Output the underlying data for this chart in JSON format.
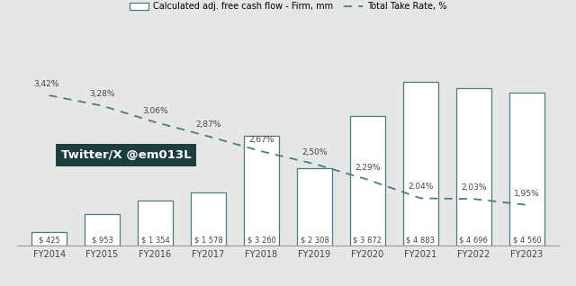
{
  "categories": [
    "FY2014",
    "FY2015",
    "FY2016",
    "FY2017",
    "FY2018",
    "FY2019",
    "FY2020",
    "FY2021",
    "FY2022",
    "FY2023"
  ],
  "bar_values": [
    425,
    953,
    1354,
    1578,
    3260,
    2308,
    3872,
    4883,
    4696,
    4560
  ],
  "bar_labels": [
    "$ 425",
    "$ 953",
    "$ 1 354",
    "$ 1 578",
    "$ 3 260",
    "$ 2 308",
    "$ 3 872",
    "$ 4 883",
    "$ 4 696",
    "$ 4 560"
  ],
  "take_rate": [
    3.42,
    3.28,
    3.06,
    2.87,
    2.67,
    2.5,
    2.29,
    2.04,
    2.03,
    1.95
  ],
  "take_rate_labels": [
    "3,42%",
    "3,28%",
    "3,06%",
    "2,87%",
    "2,67%",
    "2,50%",
    "2,29%",
    "2,04%",
    "2,03%",
    "1,95%"
  ],
  "bar_color": "#ffffff",
  "bar_edge_color": "#4a7c7c",
  "line_color": "#4a7c7c",
  "background_color": "#e6e6e6",
  "annotation_box_color": "#1e3d3d",
  "annotation_text": "Twitter/X @em013L",
  "annotation_text_color": "#ffffff",
  "legend_bar_label": "Calculated adj. free cash flow - Firm, mm",
  "legend_line_label": "Total Take Rate, %",
  "bar_label_fontsize": 6.0,
  "take_rate_fontsize": 6.5,
  "axis_label_fontsize": 7.0,
  "legend_fontsize": 7.0,
  "ylim_bar": [
    0,
    6200
  ],
  "take_rate_ylim_min": 1.4,
  "take_rate_ylim_max": 4.2
}
